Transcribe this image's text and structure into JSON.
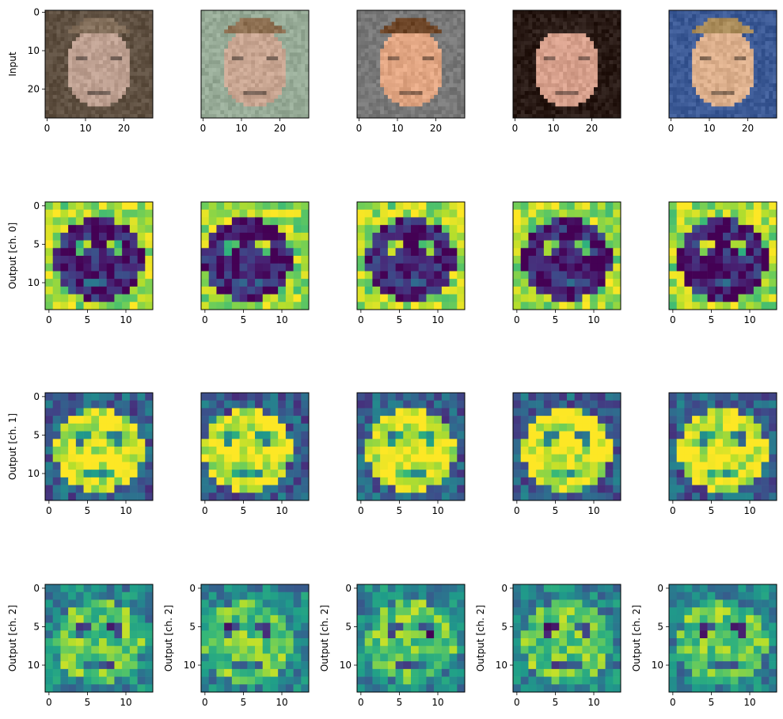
{
  "figure": {
    "row_labels": [
      "Input",
      "Output [ch. 0]",
      "Output [ch. 1]",
      "Output [ch. 2]"
    ]
  },
  "chart_data": {
    "type": "heatmap",
    "layout": "4 rows x 5 columns of image panels",
    "colormap": "viridis",
    "rows": [
      {
        "ylabel": "Input",
        "content": "RGB face images, 28x28 pixels",
        "ylabel_on": "first column only",
        "x_ticks": [
          "0",
          "10",
          "20"
        ],
        "y_ticks": [
          "0",
          "10",
          "20"
        ],
        "x_range": [
          -0.5,
          27.5
        ],
        "y_range": [
          -0.5,
          27.5
        ]
      },
      {
        "ylabel": "Output [ch. 0]",
        "content": "14x14 feature map, channel 0",
        "ylabel_on": "first column only",
        "x_ticks": [
          "0",
          "5",
          "10"
        ],
        "y_ticks": [
          "0",
          "5",
          "10"
        ],
        "x_range": [
          -0.5,
          13.5
        ],
        "y_range": [
          -0.5,
          13.5
        ]
      },
      {
        "ylabel": "Output [ch. 1]",
        "content": "14x14 feature map, channel 1",
        "ylabel_on": "first column only",
        "x_ticks": [
          "0",
          "5",
          "10"
        ],
        "y_ticks": [
          "0",
          "5",
          "10"
        ],
        "x_range": [
          -0.5,
          13.5
        ],
        "y_range": [
          -0.5,
          13.5
        ]
      },
      {
        "ylabel": "Output [ch. 2]",
        "content": "14x14 feature map, channel 2",
        "ylabel_on": "every column",
        "x_ticks": [
          "0",
          "5",
          "10"
        ],
        "y_ticks": [
          "0",
          "5",
          "10"
        ],
        "x_range": [
          -0.5,
          13.5
        ],
        "y_range": [
          -0.5,
          13.5
        ]
      }
    ],
    "colors": {
      "viridis_low": "#440154",
      "viridis_mid": "#21918c",
      "viridis_high": "#fde725"
    }
  }
}
